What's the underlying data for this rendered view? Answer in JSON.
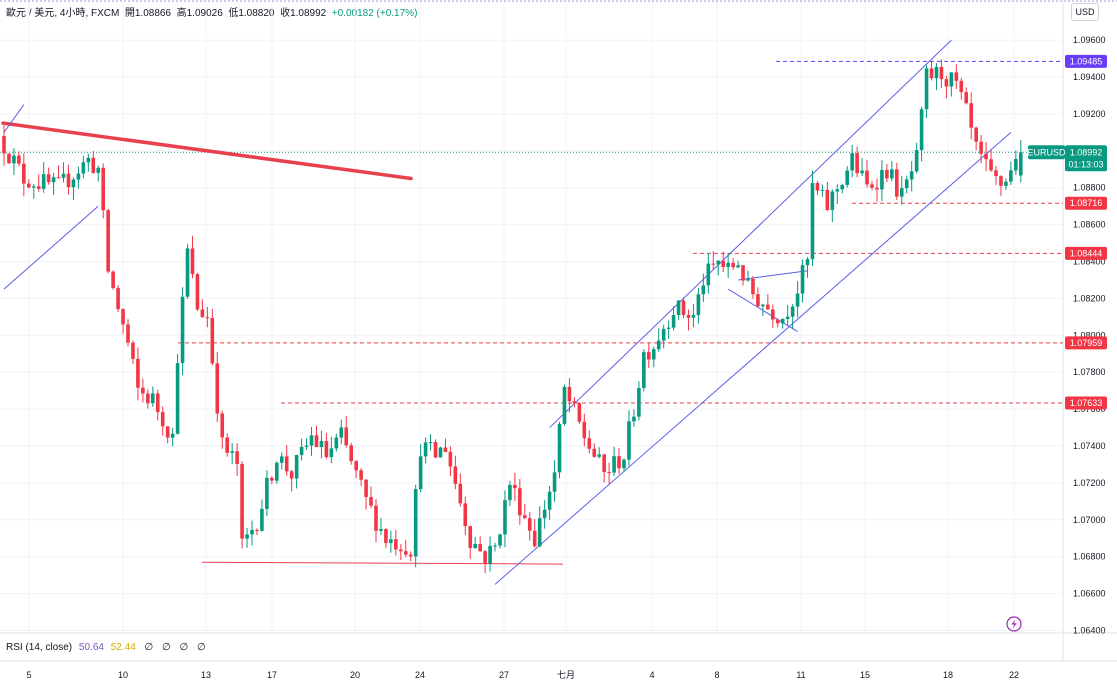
{
  "header": {
    "symbol_line": "歐元 / 美元, 4小時, FXCM",
    "open_label": "開",
    "open": "1.08866",
    "high_label": "高",
    "high": "1.09026",
    "low_label": "低",
    "low": "1.08820",
    "close_label": "收",
    "close": "1.08992",
    "change": "+0.00182 (+0.17%)"
  },
  "currency": "USD",
  "rsi": {
    "label": "RSI (14, close)",
    "value1": "50.64",
    "value2": "52.44",
    "extra": "∅ ∅ ∅ ∅"
  },
  "colors": {
    "up": "#089981",
    "down": "#f23645",
    "channel": "#5b5fe8",
    "trend": "#e8404f",
    "hline": "#e8404f",
    "current": "#089981",
    "high_tag": "#6a3cf7"
  },
  "current_tag": {
    "symbol": "EURUSD",
    "price": "1.08992",
    "countdown": "01:13:03"
  },
  "chart_data": {
    "type": "candlestick",
    "timeframe": "4h",
    "y_ticks": [
      "1.09600",
      "1.09400",
      "1.09200",
      "1.09000",
      "1.08800",
      "1.08600",
      "1.08400",
      "1.08200",
      "1.08000",
      "1.07800",
      "1.07600",
      "1.07400",
      "1.07200",
      "1.07000",
      "1.06800",
      "1.06600",
      "1.06400"
    ],
    "x_ticks": [
      "5",
      "10",
      "13",
      "17",
      "20",
      "24",
      "27",
      "七月",
      "4",
      "8",
      "11",
      "15",
      "18",
      "22"
    ],
    "price_tags": [
      {
        "value": "1.09485",
        "kind": "high"
      },
      {
        "value": "1.08716",
        "kind": "level"
      },
      {
        "value": "1.08444",
        "kind": "level"
      },
      {
        "value": "1.07959",
        "kind": "level"
      },
      {
        "value": "1.07633",
        "kind": "level"
      }
    ],
    "horizontal_lines": [
      1.09485,
      1.08716,
      1.08444,
      1.07959,
      1.07633
    ],
    "support_line": [
      1.0677,
      1.0676
    ],
    "downtrend_line": [
      1.0915,
      1.0885
    ],
    "waypoints": [
      [
        0,
        1.0908
      ],
      [
        5,
        1.0885
      ],
      [
        12,
        1.088
      ],
      [
        18,
        1.0895
      ],
      [
        20,
        1.089
      ],
      [
        22,
        1.0835
      ],
      [
        24,
        1.0815
      ],
      [
        26,
        1.0795
      ],
      [
        28,
        1.077
      ],
      [
        31,
        1.0765
      ],
      [
        35,
        1.0745
      ],
      [
        36,
        1.079
      ],
      [
        38,
        1.0845
      ],
      [
        40,
        1.0815
      ],
      [
        42,
        1.081
      ],
      [
        45,
        1.074
      ],
      [
        48,
        1.073
      ],
      [
        49,
        1.0685
      ],
      [
        52,
        1.07
      ],
      [
        56,
        1.0735
      ],
      [
        59,
        1.0725
      ],
      [
        63,
        1.0745
      ],
      [
        66,
        1.0735
      ],
      [
        69,
        1.0745
      ],
      [
        74,
        1.071
      ],
      [
        78,
        1.069
      ],
      [
        83,
        1.0685
      ],
      [
        85,
        1.074
      ],
      [
        88,
        1.0735
      ],
      [
        90,
        1.074
      ],
      [
        93,
        1.071
      ],
      [
        95,
        1.069
      ],
      [
        98,
        1.068
      ],
      [
        100,
        1.0685
      ],
      [
        103,
        1.072
      ],
      [
        108,
        1.069
      ],
      [
        112,
        1.0725
      ],
      [
        114,
        1.077
      ],
      [
        118,
        1.0745
      ],
      [
        122,
        1.0725
      ],
      [
        126,
        1.0735
      ],
      [
        128,
        1.076
      ],
      [
        130,
        1.079
      ],
      [
        132,
        1.0795
      ],
      [
        136,
        1.0815
      ],
      [
        140,
        1.081
      ],
      [
        142,
        1.083
      ],
      [
        145,
        1.084
      ],
      [
        147,
        1.0835
      ],
      [
        149,
        1.084
      ],
      [
        151,
        1.0825
      ],
      [
        155,
        1.0815
      ],
      [
        158,
        1.081
      ],
      [
        161,
        1.0825
      ],
      [
        163,
        1.084
      ],
      [
        164,
        1.088
      ],
      [
        167,
        1.087
      ],
      [
        170,
        1.0885
      ],
      [
        172,
        1.0895
      ],
      [
        175,
        1.088
      ],
      [
        179,
        1.089
      ],
      [
        182,
        1.0875
      ],
      [
        185,
        1.0895
      ],
      [
        187,
        1.094
      ],
      [
        190,
        1.0942
      ],
      [
        193,
        1.0935
      ],
      [
        195,
        1.092
      ],
      [
        197,
        1.09
      ],
      [
        200,
        1.0885
      ],
      [
        202,
        1.0882
      ],
      [
        204,
        1.0888
      ],
      [
        205,
        1.0899
      ]
    ],
    "channels": [
      {
        "name": "ascending-channel",
        "line1": [
          [
            110,
            1.075
          ],
          [
            191,
            1.096
          ]
        ],
        "line2": [
          [
            99,
            1.0665
          ],
          [
            203,
            1.091
          ]
        ]
      },
      {
        "name": "left-channel",
        "line1": [
          [
            0,
            1.091
          ],
          [
            4,
            1.0925
          ]
        ],
        "line2": [
          [
            0,
            1.0825
          ],
          [
            19,
            1.087
          ]
        ]
      }
    ],
    "flag": {
      "top": [
        [
          148,
          1.083
        ],
        [
          162,
          1.0835
        ]
      ],
      "bottom": [
        [
          146,
          1.0825
        ],
        [
          160,
          1.0802
        ]
      ]
    },
    "grid": true,
    "y_range": [
      1.064,
      1.0975
    ],
    "y_axis_side": "right",
    "indicator": "RSI (14, close)"
  }
}
